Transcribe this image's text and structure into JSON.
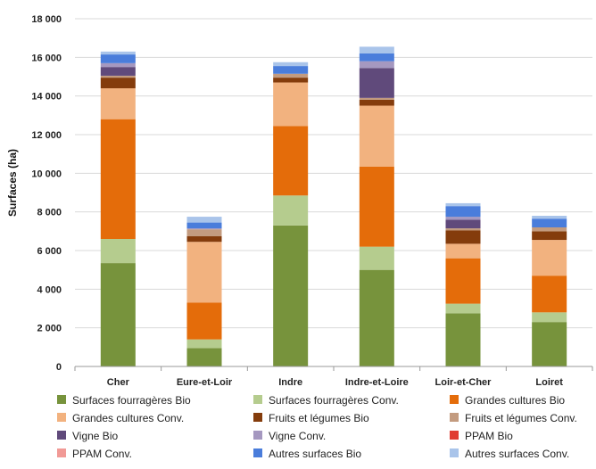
{
  "chart_data": {
    "type": "bar",
    "stacked": true,
    "title": "",
    "xlabel": "",
    "ylabel": "Surfaces (ha)",
    "ylim": [
      0,
      18000
    ],
    "yticks": [
      "0",
      "2 000",
      "4 000",
      "6 000",
      "8 000",
      "10 000",
      "12 000",
      "14 000",
      "16 000",
      "18 000"
    ],
    "ytick_values": [
      0,
      2000,
      4000,
      6000,
      8000,
      10000,
      12000,
      14000,
      16000,
      18000
    ],
    "grid": true,
    "legend_position": "bottom",
    "categories": [
      "Cher",
      "Eure-et-Loir",
      "Indre",
      "Indre-et-Loire",
      "Loir-et-Cher",
      "Loiret"
    ],
    "series": [
      {
        "name": "Surfaces fourragères Bio",
        "color": "#77933c",
        "values": [
          5350,
          950,
          7300,
          5000,
          2750,
          2300
        ]
      },
      {
        "name": "Surfaces fourragères Conv.",
        "color": "#b5cc8e",
        "values": [
          1250,
          450,
          1550,
          1200,
          500,
          500
        ]
      },
      {
        "name": "Grandes cultures Bio",
        "color": "#e46c0a",
        "values": [
          6200,
          1900,
          3600,
          4150,
          2350,
          1900
        ]
      },
      {
        "name": "Grandes cultures Conv.",
        "color": "#f2b27f",
        "values": [
          1600,
          3150,
          2250,
          3150,
          750,
          1850
        ]
      },
      {
        "name": "Fruits et légumes Bio",
        "color": "#843c0c",
        "values": [
          550,
          300,
          250,
          300,
          700,
          450
        ]
      },
      {
        "name": "Fruits et légumes Conv.",
        "color": "#c39b7f",
        "values": [
          100,
          350,
          200,
          100,
          100,
          200
        ]
      },
      {
        "name": "Vigne Bio",
        "color": "#604a7b",
        "values": [
          450,
          0,
          0,
          1550,
          450,
          0
        ]
      },
      {
        "name": "Vigne Conv.",
        "color": "#a598c0",
        "values": [
          200,
          50,
          0,
          350,
          150,
          0
        ]
      },
      {
        "name": "PPAM Bio",
        "color": "#e03c31",
        "values": [
          0,
          0,
          0,
          0,
          0,
          0
        ]
      },
      {
        "name": "PPAM Conv.",
        "color": "#f19a96",
        "values": [
          0,
          0,
          0,
          0,
          0,
          0
        ]
      },
      {
        "name": "Autres surfaces Bio",
        "color": "#4a7ddb",
        "values": [
          450,
          300,
          400,
          400,
          550,
          450
        ]
      },
      {
        "name": "Autres surfaces Conv.",
        "color": "#a9c4ea",
        "values": [
          150,
          300,
          200,
          350,
          150,
          150
        ]
      }
    ]
  }
}
